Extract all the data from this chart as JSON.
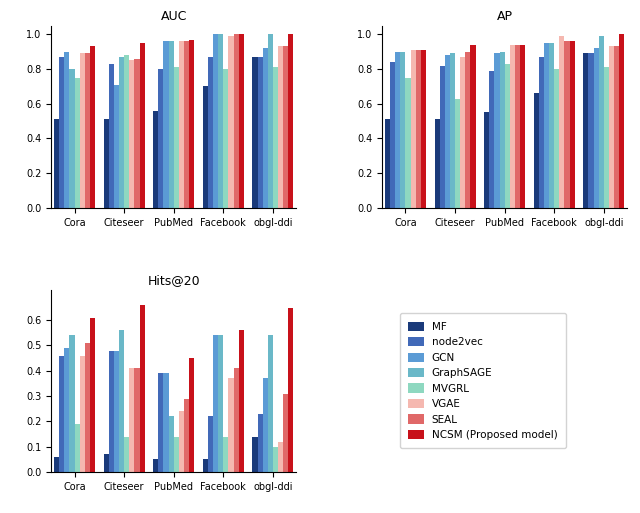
{
  "datasets": [
    "MF",
    "node2vec",
    "GCN",
    "GraphSAGE",
    "MVGRL",
    "VGAE",
    "SEAL",
    "NCSM (Proposed model)"
  ],
  "colors": [
    "#1a3a7a",
    "#4169b8",
    "#5b9bd5",
    "#6ab8c8",
    "#8ed8c0",
    "#f5b8b0",
    "#e06868",
    "#c8111a"
  ],
  "categories": [
    "Cora",
    "Citeseer",
    "PubMed",
    "Facebook",
    "obgl-ddi"
  ],
  "AUC": {
    "MF": [
      0.51,
      0.51,
      0.56,
      0.7,
      0.87
    ],
    "node2vec": [
      0.87,
      0.83,
      0.8,
      0.87,
      0.87
    ],
    "GCN": [
      0.9,
      0.71,
      0.96,
      1.0,
      0.92
    ],
    "GraphSAGE": [
      0.8,
      0.87,
      0.96,
      1.0,
      1.0
    ],
    "MVGRL": [
      0.75,
      0.88,
      0.81,
      0.8,
      0.81
    ],
    "VGAE": [
      0.89,
      0.85,
      0.96,
      0.99,
      0.93
    ],
    "SEAL": [
      0.89,
      0.86,
      0.96,
      1.0,
      0.93
    ],
    "NCSM (Proposed model)": [
      0.93,
      0.95,
      0.97,
      1.0,
      1.0
    ]
  },
  "AP": {
    "MF": [
      0.51,
      0.51,
      0.55,
      0.66,
      0.89
    ],
    "node2vec": [
      0.84,
      0.82,
      0.79,
      0.87,
      0.89
    ],
    "GCN": [
      0.9,
      0.88,
      0.89,
      0.95,
      0.92
    ],
    "GraphSAGE": [
      0.9,
      0.89,
      0.9,
      0.95,
      0.99
    ],
    "MVGRL": [
      0.75,
      0.63,
      0.83,
      0.8,
      0.81
    ],
    "VGAE": [
      0.91,
      0.87,
      0.94,
      0.99,
      0.93
    ],
    "SEAL": [
      0.91,
      0.9,
      0.94,
      0.96,
      0.93
    ],
    "NCSM (Proposed model)": [
      0.91,
      0.94,
      0.94,
      0.96,
      1.0
    ]
  },
  "Hits@20": {
    "MF": [
      0.06,
      0.07,
      0.05,
      0.05,
      0.14
    ],
    "node2vec": [
      0.46,
      0.48,
      0.39,
      0.22,
      0.23
    ],
    "GCN": [
      0.49,
      0.48,
      0.39,
      0.54,
      0.37
    ],
    "GraphSAGE": [
      0.54,
      0.56,
      0.22,
      0.54,
      0.54
    ],
    "MVGRL": [
      0.19,
      0.14,
      0.14,
      0.14,
      0.1
    ],
    "VGAE": [
      0.46,
      0.41,
      0.24,
      0.37,
      0.12
    ],
    "SEAL": [
      0.51,
      0.41,
      0.29,
      0.41,
      0.31
    ],
    "NCSM (Proposed model)": [
      0.61,
      0.66,
      0.45,
      0.56,
      0.65
    ]
  },
  "figsize": [
    6.4,
    5.13
  ],
  "dpi": 100
}
